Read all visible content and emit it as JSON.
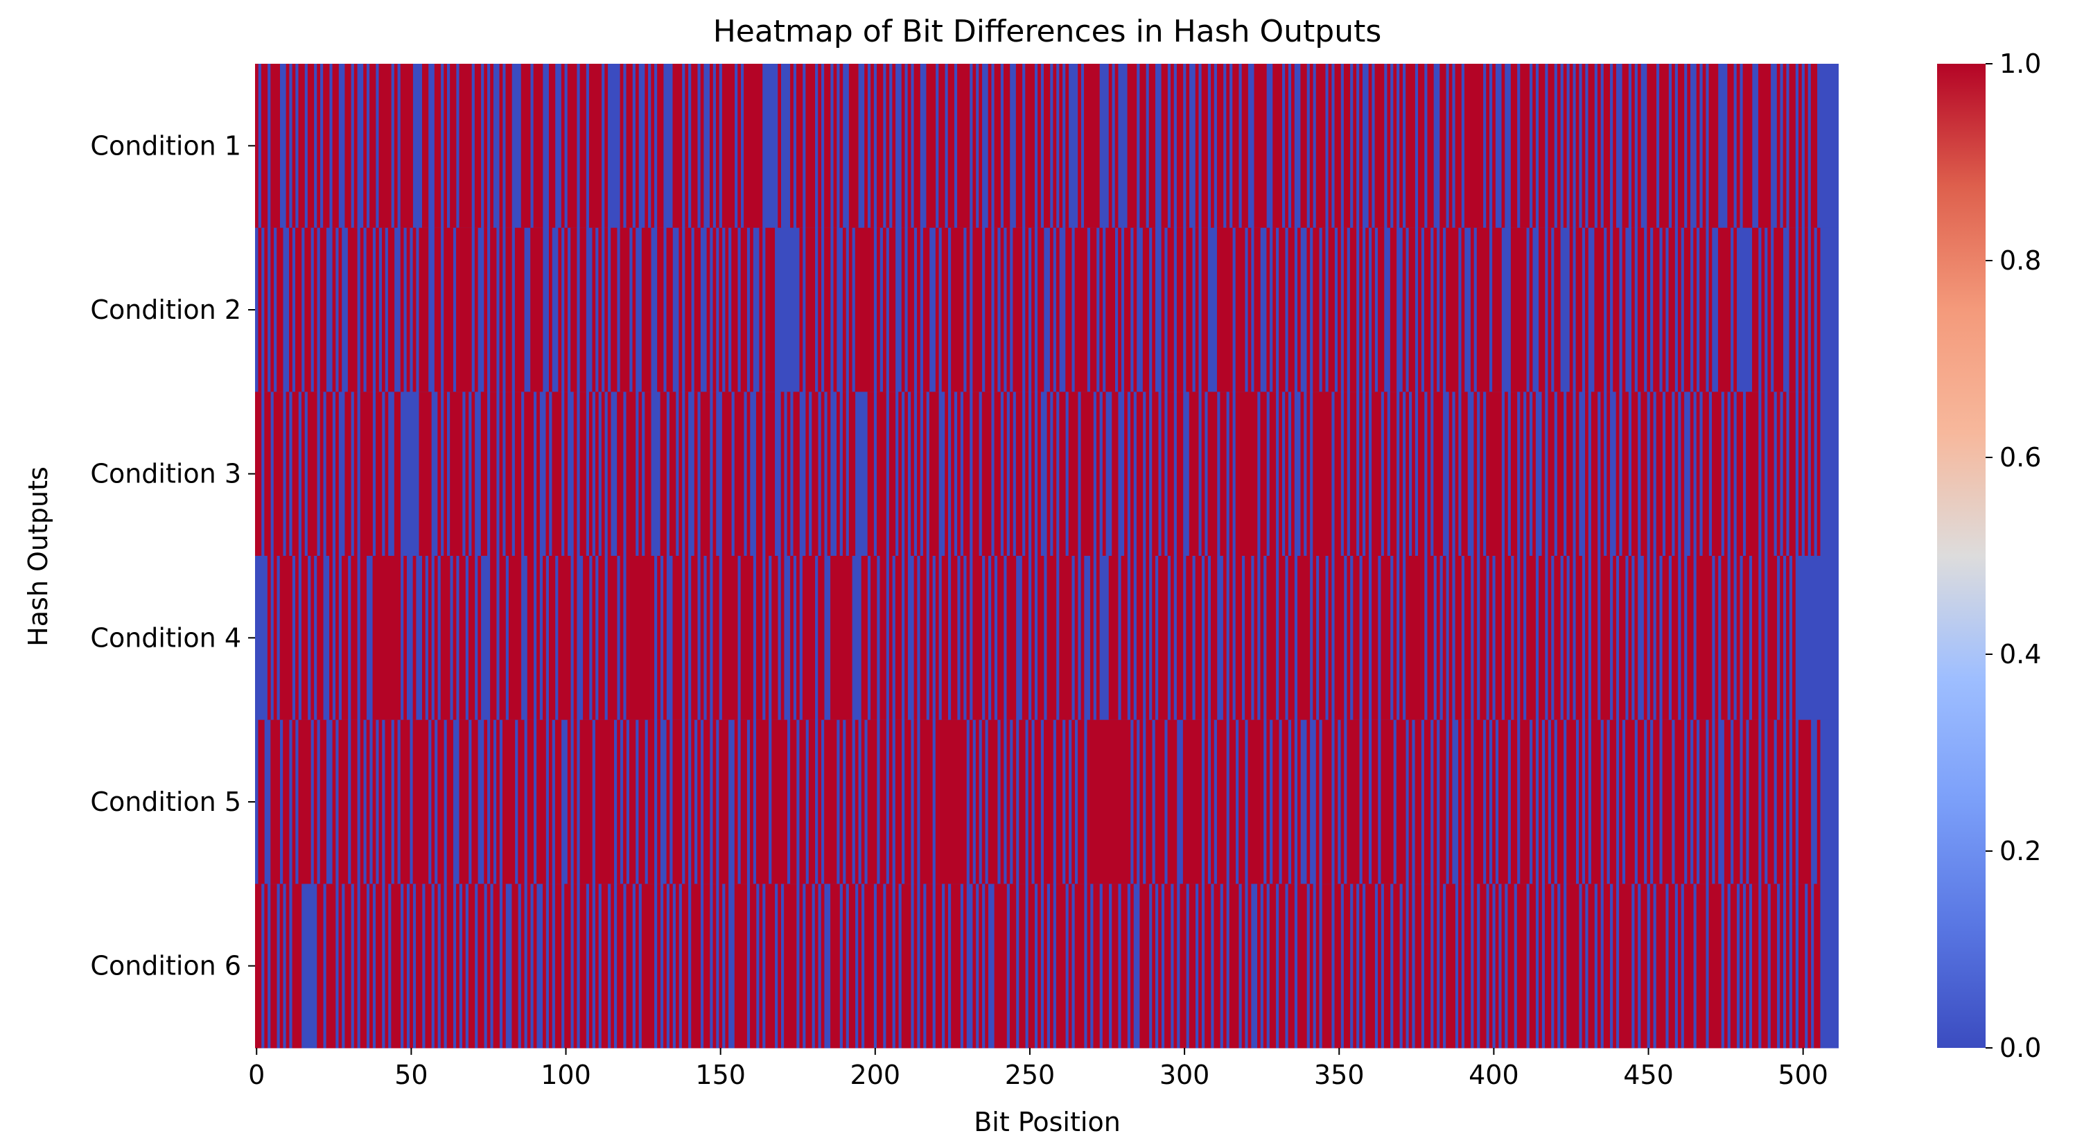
{
  "chart_data": {
    "type": "heatmap",
    "title": "Heatmap of Bit Differences in Hash Outputs",
    "xlabel": "Bit Position",
    "ylabel": "Hash Outputs",
    "row_labels": [
      "Condition 1",
      "Condition 2",
      "Condition 3",
      "Condition 4",
      "Condition 5",
      "Condition 6"
    ],
    "n_bits": 512,
    "x_ticks": [
      0,
      50,
      100,
      150,
      200,
      250,
      300,
      350,
      400,
      450,
      500
    ],
    "colorbar": {
      "label": "",
      "range": [
        0.0,
        1.0
      ],
      "ticks": [
        "0.0",
        "0.2",
        "0.4",
        "0.6",
        "0.8",
        "1.0"
      ],
      "colormap": "coolwarm"
    },
    "value_colors": {
      "0": "#3b4cc0",
      "1": "#b40426"
    },
    "rows_bits": [
      "10110111001010110110101101100110100101101111010111100011001101011011110110101001011000111011100110010111011011110100001011010010101100011101011010010101111010111111000001000101101110101101010011100101011010100101011001110110110111101010010110110011011101011010101000101111100010100011101101100110101101001011010110101101100111100111010100110101110101101101010010111010101011101101100110101101111110101001001101110101101101010101010110101101001101010011101110101101001010111000110101110011110010101101010110",
      "01010101100101101101011001010011101011010101100101010111001101110111110100101101011011100111100100101011011001010101101110100111001101100101101100101010101101101001011100000000101110101101001010111111010101100101101011001011011110101110110101010111010101100101001101111011010111010110100110100101101101101011000111110111010110010101101101001011010110101011010101011001100101101011010101111010010111101110001111101001101011000101101001110101101001011010110101101011010110100111101000001101010111001101010101",
      "11011011101011010111010110100110101111011010011000000111100101011110101001101101011011011101001011101001011010101010011011101011000110110101001011101001110111010011011100101011001011010100101011000011011101101010101010111001010101101101110110101011010101001010110111011110101001100101011010110101101100111010111011010111111101101101010100101011111101101011010101110101101010101101011100101011001010111110101101010100101101101101001011010100101101101101011011010100101011011101010110111101011010101101010101",
      "00001010111101011010110010101101101100111111111010010010101011101011011010001101101111001101010110111101001101011011101011111111101010011101011010101101111101111011010110100101011110110011111110001101101101011010010110101011011010101110101011011100110101101110111101010010100011101101011010101110101101101101011001010110110101011101101101111010110101110101101101101110101011111101101010101101101011010110110101011101101011010101101011011101011010100101010110110101101111101011010101101101011101010100000000",
      "01100111011010111101011001011101101010101011010111011111010110110011101100101010111101101101110101100101011110111111010101101101101001011101010101101011100101101011110111110110110110101111010110101011101101011011010111101111111111010101011101010101101011011101101010110111111111111110101011011101110011111101010111011011011111010110110101001001011101010111101101101111011101011011010110100101101110101011101101110101010101101110101011101011010111011010110111011101010110101001101101011101011011010101111001",
      "11010110101011100000110111010110101101011010111010101101101010110101011011010110100110101010010101101101011010101101011011010111101010101011011101101010100111101101011101011110101101010011101011010111011011010111010101101101011101001010100111101101101101010101110101110101101101101101001110101011010110110101101101011101010010101101101101110101011101101101010111010110110101011011010101110101101011010101011011101101011010101111010110101101011110101101011101101011101110111101011010101101101101010101101011"
    ]
  }
}
